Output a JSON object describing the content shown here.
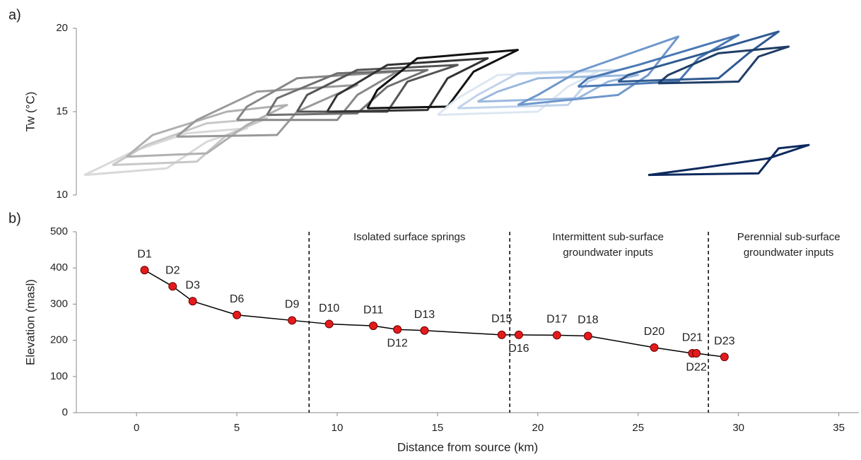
{
  "chart_data": [
    {
      "type": "line",
      "panel_label": "a)",
      "ylabel": "Tw (°C)",
      "xlim": [
        -3,
        36
      ],
      "ylim": [
        10,
        20
      ],
      "yticks": [
        10,
        15,
        20
      ],
      "series": [
        {
          "color": "#d9d9d9",
          "x": [
            -2.6,
            1.5,
            3.5,
            5.5,
            2.5,
            0,
            -2.6
          ],
          "values": [
            11.2,
            11.6,
            13.2,
            14.0,
            13.7,
            12.7,
            11.2
          ]
        },
        {
          "color": "#c8c8c8",
          "x": [
            -1.2,
            3,
            4.5,
            6.5,
            3.5,
            0.5,
            -1.2
          ],
          "values": [
            11.8,
            12.0,
            13.6,
            14.6,
            14.3,
            13.0,
            11.8
          ]
        },
        {
          "color": "#b0b0b0",
          "x": [
            -0.5,
            3.5,
            5.5,
            7.5,
            4.5,
            0.8,
            -0.5
          ],
          "values": [
            12.3,
            12.5,
            14.2,
            15.4,
            15.0,
            13.6,
            12.3
          ]
        },
        {
          "color": "#999999",
          "x": [
            2,
            7,
            8,
            11,
            6,
            3,
            2
          ],
          "values": [
            13.5,
            13.6,
            15,
            16.6,
            16.2,
            14.5,
            13.5
          ]
        },
        {
          "color": "#888888",
          "x": [
            5,
            10,
            11,
            13,
            8,
            5.5,
            5
          ],
          "values": [
            14.5,
            14.5,
            16,
            17.4,
            17.0,
            15.3,
            14.5
          ]
        },
        {
          "color": "#707070",
          "x": [
            6.5,
            11,
            12.5,
            14.5,
            10,
            7,
            6.5
          ],
          "values": [
            14.8,
            14.9,
            16.5,
            17.5,
            17.3,
            15.8,
            14.8
          ]
        },
        {
          "color": "#555555",
          "x": [
            8,
            12.5,
            13.5,
            16,
            11,
            8.5,
            8
          ],
          "values": [
            15,
            15,
            16.8,
            17.8,
            17.5,
            16,
            15
          ]
        },
        {
          "color": "#333333",
          "x": [
            9.5,
            14.5,
            15.5,
            17.5,
            12.5,
            10,
            9.5
          ],
          "values": [
            15,
            15.1,
            17,
            18.2,
            17.8,
            16,
            15
          ]
        },
        {
          "color": "#111111",
          "x": [
            11.5,
            15.5,
            16.8,
            19,
            14,
            12,
            11.5
          ],
          "values": [
            15.2,
            15.3,
            17.4,
            18.7,
            18.2,
            16.3,
            15.2
          ]
        },
        {
          "color": "#dde7f2",
          "x": [
            15,
            20,
            21.5,
            23,
            18,
            16,
            15
          ],
          "values": [
            14.8,
            15,
            16.5,
            17.4,
            17.2,
            15.8,
            14.8
          ]
        },
        {
          "color": "#c0d3ea",
          "x": [
            16,
            21.5,
            22.5,
            24,
            19,
            17,
            16
          ],
          "values": [
            15.2,
            15.4,
            16.8,
            17.5,
            17.3,
            16,
            15.2
          ]
        },
        {
          "color": "#9ab8dd",
          "x": [
            17,
            22,
            23.5,
            25,
            20,
            18,
            17
          ],
          "values": [
            15.6,
            15.8,
            16.8,
            17.2,
            17.0,
            16.2,
            15.6
          ]
        },
        {
          "color": "#6f97cc",
          "x": [
            19,
            24,
            25.5,
            27,
            22,
            20,
            19
          ],
          "values": [
            15.4,
            16,
            17.2,
            19.5,
            17.4,
            16,
            15.4
          ]
        },
        {
          "color": "#4a78b5",
          "x": [
            22,
            27,
            28,
            30,
            25,
            22.5,
            22
          ],
          "values": [
            16.5,
            16.8,
            18.2,
            19.6,
            17.8,
            17,
            16.5
          ]
        },
        {
          "color": "#2f5a92",
          "x": [
            24,
            29,
            30.5,
            32,
            28,
            24.5,
            24
          ],
          "values": [
            16.8,
            17,
            18.5,
            19.8,
            18.4,
            17.2,
            16.8
          ]
        },
        {
          "color": "#1f3d66",
          "x": [
            26,
            30,
            31,
            32.5,
            29,
            26.5,
            26
          ],
          "values": [
            16.7,
            16.8,
            18.3,
            18.9,
            18.5,
            17.2,
            16.7
          ]
        },
        {
          "color": "#0d2a5e",
          "x": [
            25.5,
            31,
            32,
            33.5,
            31.5,
            28,
            25.5
          ],
          "values": [
            11.2,
            11.3,
            12.8,
            13.0,
            12.2,
            11.6,
            11.2
          ]
        }
      ]
    },
    {
      "type": "line",
      "panel_label": "b)",
      "xlabel": "Distance from source (km)",
      "ylabel": "Elevation (masl)",
      "xlim": [
        -3,
        36
      ],
      "xticks": [
        0,
        5,
        10,
        15,
        20,
        25,
        30,
        35
      ],
      "ylim": [
        0,
        500
      ],
      "yticks": [
        0,
        100,
        200,
        300,
        400,
        500
      ],
      "line_color": "#000000",
      "marker_color": "#e41a1c",
      "x": [
        0.4,
        1.8,
        2.8,
        5.0,
        7.75,
        9.6,
        11.8,
        13.0,
        14.35,
        18.2,
        19.05,
        20.95,
        22.5,
        25.8,
        27.7,
        27.9,
        29.3
      ],
      "values": [
        394,
        349,
        308,
        270,
        255,
        245,
        240,
        230,
        227,
        215,
        215,
        214,
        212,
        180,
        164,
        164,
        154
      ],
      "point_labels": [
        "D1",
        "D2",
        "D3",
        "D6",
        "D9",
        "D10",
        "D11",
        "D12",
        "D13",
        "D15",
        "D16",
        "D17",
        "D18",
        "D20",
        "D21",
        "D22",
        "D23"
      ],
      "dividers": [
        8.6,
        18.6,
        28.5
      ],
      "region_labels": [
        {
          "x": 13.6,
          "lines": [
            "Isolated surface springs"
          ]
        },
        {
          "x": 23.5,
          "lines": [
            "Intermittent sub-surface",
            "groundwater inputs"
          ]
        },
        {
          "x": 32.5,
          "lines": [
            "Perennial sub-surface",
            "groundwater inputs"
          ]
        }
      ]
    }
  ]
}
